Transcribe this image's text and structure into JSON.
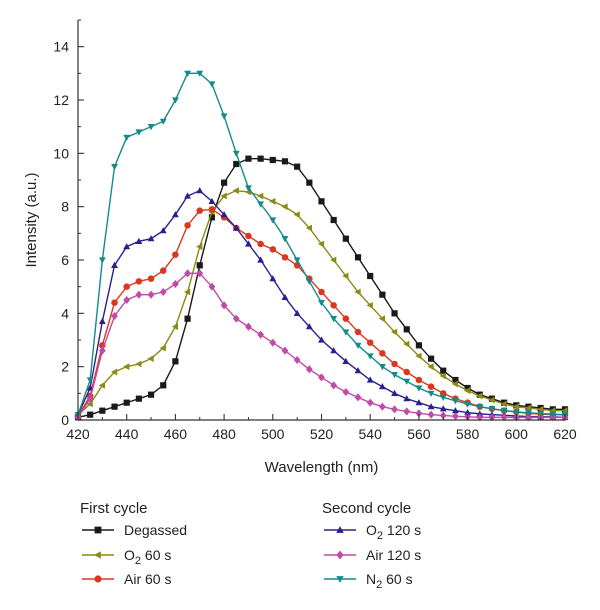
{
  "chart_data": {
    "type": "line",
    "xlabel": "Wavelength (nm)",
    "ylabel": "Intensity (a.u.)",
    "xlim": [
      420,
      620
    ],
    "ylim": [
      0,
      15
    ],
    "xticks": [
      420,
      440,
      460,
      480,
      500,
      520,
      540,
      560,
      580,
      600,
      620
    ],
    "yticks": [
      0,
      2,
      4,
      6,
      8,
      10,
      12,
      14
    ],
    "grid": false,
    "legend_placement": "bottom",
    "legend_groups": [
      {
        "title": "First cycle",
        "series": [
          0,
          1,
          2
        ]
      },
      {
        "title": "Second cycle",
        "series": [
          3,
          4,
          5
        ]
      }
    ],
    "series": [
      {
        "name": "Degassed",
        "name_main": "Degassed",
        "name_sub": "",
        "name_rest": "",
        "color": "#1a1a1a",
        "marker": "square",
        "x": [
          420,
          425,
          430,
          435,
          440,
          445,
          450,
          455,
          460,
          465,
          470,
          475,
          480,
          485,
          490,
          495,
          500,
          505,
          510,
          515,
          520,
          525,
          530,
          535,
          540,
          545,
          550,
          555,
          560,
          565,
          570,
          575,
          580,
          585,
          590,
          595,
          600,
          605,
          610,
          615,
          620
        ],
        "y": [
          0.1,
          0.2,
          0.35,
          0.5,
          0.65,
          0.8,
          0.95,
          1.3,
          2.2,
          3.8,
          5.8,
          7.6,
          8.9,
          9.6,
          9.8,
          9.8,
          9.75,
          9.7,
          9.5,
          8.9,
          8.2,
          7.5,
          6.8,
          6.1,
          5.4,
          4.7,
          4.0,
          3.4,
          2.8,
          2.3,
          1.85,
          1.5,
          1.2,
          0.95,
          0.8,
          0.65,
          0.55,
          0.5,
          0.45,
          0.4,
          0.4
        ]
      },
      {
        "name": "O2 60 s",
        "name_main": "O",
        "name_sub": "2",
        "name_rest": " 60 s",
        "color": "#8a8a14",
        "marker": "triangle-left",
        "x": [
          420,
          425,
          430,
          435,
          440,
          445,
          450,
          455,
          460,
          465,
          470,
          475,
          480,
          485,
          490,
          495,
          500,
          505,
          510,
          515,
          520,
          525,
          530,
          535,
          540,
          545,
          550,
          555,
          560,
          565,
          570,
          575,
          580,
          585,
          590,
          595,
          600,
          605,
          610,
          615,
          620
        ],
        "y": [
          0.2,
          0.6,
          1.3,
          1.8,
          2.0,
          2.1,
          2.3,
          2.7,
          3.5,
          4.8,
          6.5,
          7.8,
          8.4,
          8.6,
          8.55,
          8.4,
          8.2,
          8.0,
          7.7,
          7.2,
          6.6,
          6.0,
          5.4,
          4.8,
          4.3,
          3.8,
          3.3,
          2.85,
          2.4,
          2.0,
          1.65,
          1.35,
          1.1,
          0.9,
          0.75,
          0.6,
          0.5,
          0.45,
          0.4,
          0.35,
          0.35
        ]
      },
      {
        "name": "Air 60 s",
        "name_main": "Air 60 s",
        "name_sub": "",
        "name_rest": "",
        "color": "#d9381e",
        "marker": "circle",
        "x": [
          420,
          425,
          430,
          435,
          440,
          445,
          450,
          455,
          460,
          465,
          470,
          475,
          480,
          485,
          490,
          495,
          500,
          505,
          510,
          515,
          520,
          525,
          530,
          535,
          540,
          545,
          550,
          555,
          560,
          565,
          570,
          575,
          580,
          585,
          590,
          595,
          600,
          605,
          610,
          615,
          620
        ],
        "y": [
          0.15,
          0.9,
          2.8,
          4.4,
          5.0,
          5.2,
          5.3,
          5.6,
          6.2,
          7.3,
          7.85,
          7.9,
          7.6,
          7.2,
          6.9,
          6.6,
          6.4,
          6.1,
          5.8,
          5.3,
          4.8,
          4.3,
          3.8,
          3.3,
          2.9,
          2.5,
          2.1,
          1.8,
          1.5,
          1.25,
          1.0,
          0.8,
          0.65,
          0.5,
          0.42,
          0.35,
          0.3,
          0.25,
          0.22,
          0.2,
          0.2
        ]
      },
      {
        "name": "O2 120 s",
        "name_main": "O",
        "name_sub": "2",
        "name_rest": " 120 s",
        "color": "#2b1f8f",
        "marker": "triangle-up",
        "x": [
          420,
          425,
          430,
          435,
          440,
          445,
          450,
          455,
          460,
          465,
          470,
          475,
          480,
          485,
          490,
          495,
          500,
          505,
          510,
          515,
          520,
          525,
          530,
          535,
          540,
          545,
          550,
          555,
          560,
          565,
          570,
          575,
          580,
          585,
          590,
          595,
          600,
          605,
          610,
          615,
          620
        ],
        "y": [
          0.2,
          1.2,
          3.7,
          5.8,
          6.5,
          6.7,
          6.8,
          7.1,
          7.7,
          8.4,
          8.6,
          8.2,
          7.7,
          7.2,
          6.6,
          6.0,
          5.3,
          4.6,
          4.0,
          3.5,
          3.0,
          2.6,
          2.2,
          1.85,
          1.5,
          1.25,
          1.0,
          0.8,
          0.65,
          0.5,
          0.42,
          0.35,
          0.28,
          0.23,
          0.2,
          0.18,
          0.15,
          0.13,
          0.12,
          0.12,
          0.1
        ]
      },
      {
        "name": "Air 120 s",
        "name_main": "Air 120 s",
        "name_sub": "",
        "name_rest": "",
        "color": "#c04aa8",
        "marker": "diamond",
        "x": [
          420,
          425,
          430,
          435,
          440,
          445,
          450,
          455,
          460,
          465,
          470,
          475,
          480,
          485,
          490,
          495,
          500,
          505,
          510,
          515,
          520,
          525,
          530,
          535,
          540,
          545,
          550,
          555,
          560,
          565,
          570,
          575,
          580,
          585,
          590,
          595,
          600,
          605,
          610,
          615,
          620
        ],
        "y": [
          0.1,
          0.8,
          2.6,
          3.9,
          4.5,
          4.7,
          4.7,
          4.8,
          5.1,
          5.5,
          5.5,
          5.0,
          4.3,
          3.8,
          3.5,
          3.2,
          2.9,
          2.6,
          2.25,
          1.9,
          1.6,
          1.3,
          1.05,
          0.85,
          0.65,
          0.5,
          0.4,
          0.32,
          0.25,
          0.2,
          0.17,
          0.14,
          0.12,
          0.1,
          0.1,
          0.1,
          0.1,
          0.1,
          0.1,
          0.1,
          0.1
        ]
      },
      {
        "name": "N2 60 s",
        "name_main": "N",
        "name_sub": "2",
        "name_rest": " 60 s",
        "color": "#158a8a",
        "marker": "triangle-down",
        "x": [
          420,
          425,
          430,
          435,
          440,
          445,
          450,
          455,
          460,
          465,
          470,
          475,
          480,
          485,
          490,
          495,
          500,
          505,
          510,
          515,
          520,
          525,
          530,
          535,
          540,
          545,
          550,
          555,
          560,
          565,
          570,
          575,
          580,
          585,
          590,
          595,
          600,
          605,
          610,
          615,
          620
        ],
        "y": [
          0.2,
          1.5,
          6.0,
          9.5,
          10.6,
          10.8,
          11.0,
          11.2,
          12.0,
          13.0,
          13.0,
          12.6,
          11.4,
          10.0,
          8.7,
          8.1,
          7.5,
          6.8,
          6.0,
          5.2,
          4.4,
          3.8,
          3.3,
          2.8,
          2.4,
          2.0,
          1.7,
          1.45,
          1.2,
          1.0,
          0.85,
          0.72,
          0.6,
          0.5,
          0.42,
          0.36,
          0.3,
          0.27,
          0.24,
          0.22,
          0.2
        ]
      }
    ]
  }
}
